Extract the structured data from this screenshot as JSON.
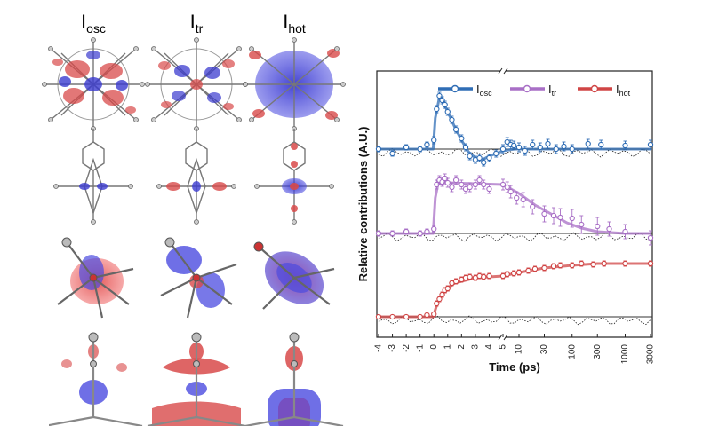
{
  "panel_titles": [
    {
      "main": "I",
      "sub": "osc"
    },
    {
      "main": "I",
      "sub": "tr"
    },
    {
      "main": "I",
      "sub": "hot"
    }
  ],
  "colors": {
    "osc": "#2f6db5",
    "tr": "#a86fc6",
    "hot": "#d04545",
    "baseline": "#333333",
    "residual": "#222222"
  },
  "chart_data": {
    "type": "scatter",
    "xlabel": "Time (ps)",
    "ylabel": "Relative contributions (A.U.)",
    "x_ticks": [
      {
        "label": "-4",
        "value": -4
      },
      {
        "label": "-3",
        "value": -3
      },
      {
        "label": "-2",
        "value": -2
      },
      {
        "label": "-1",
        "value": -1
      },
      {
        "label": "0",
        "value": 0
      },
      {
        "label": "1",
        "value": 1
      },
      {
        "label": "2",
        "value": 2
      },
      {
        "label": "3",
        "value": 3
      },
      {
        "label": "4",
        "value": 4
      },
      {
        "label": "5",
        "value": 5
      },
      {
        "label": "10",
        "value": 10
      },
      {
        "label": "30",
        "value": 30
      },
      {
        "label": "100",
        "value": 100
      },
      {
        "label": "300",
        "value": 300
      },
      {
        "label": "1000",
        "value": 1000
      },
      {
        "label": "3000",
        "value": 3000
      }
    ],
    "x_scale": "linear from -4 to 5 ps, logarithmic from 5 to 3000 ps (axis break near 5 ps)",
    "legend_position": "top",
    "series": [
      {
        "key": "osc",
        "name": "I",
        "name_sub": "osc",
        "offset": 2,
        "points": [
          [
            -4,
            0.0
          ],
          [
            -3,
            -0.05
          ],
          [
            -2,
            0.02
          ],
          [
            -1,
            0.0
          ],
          [
            -0.5,
            0.05
          ],
          [
            0,
            0.1
          ],
          [
            0.2,
            0.45
          ],
          [
            0.4,
            0.6
          ],
          [
            0.6,
            0.55
          ],
          [
            0.8,
            0.5
          ],
          [
            1,
            0.42
          ],
          [
            1.3,
            0.33
          ],
          [
            1.6,
            0.22
          ],
          [
            2,
            0.12
          ],
          [
            2.3,
            0.02
          ],
          [
            2.6,
            -0.08
          ],
          [
            3,
            -0.12
          ],
          [
            3.3,
            -0.1
          ],
          [
            3.6,
            -0.15
          ],
          [
            4,
            -0.1
          ],
          [
            4.5,
            -0.05
          ],
          [
            5,
            0.0
          ],
          [
            6,
            0.08
          ],
          [
            7,
            0.05
          ],
          [
            8,
            0.04
          ],
          [
            10,
            0.02
          ],
          [
            13,
            -0.02
          ],
          [
            18,
            0.05
          ],
          [
            25,
            0.02
          ],
          [
            35,
            0.06
          ],
          [
            50,
            0.0
          ],
          [
            70,
            0.03
          ],
          [
            100,
            0.0
          ],
          [
            200,
            0.06
          ],
          [
            350,
            0.05
          ],
          [
            1000,
            0.04
          ],
          [
            3000,
            0.05
          ]
        ],
        "errors": [
          0.03,
          0.03,
          0.03,
          0.03,
          0.03,
          0.04,
          0.04,
          0.04,
          0.04,
          0.04,
          0.04,
          0.04,
          0.04,
          0.04,
          0.04,
          0.04,
          0.04,
          0.04,
          0.04,
          0.04,
          0.04,
          0.05,
          0.05,
          0.05,
          0.05,
          0.05,
          0.05,
          0.05,
          0.05,
          0.05,
          0.05,
          0.05,
          0.05,
          0.05,
          0.05,
          0.05,
          0.05
        ],
        "fit": [
          [
            -4,
            0
          ],
          [
            -0.05,
            0
          ],
          [
            0.1,
            0.35
          ],
          [
            0.4,
            0.58
          ],
          [
            0.7,
            0.52
          ],
          [
            1,
            0.42
          ],
          [
            1.5,
            0.25
          ],
          [
            2,
            0.1
          ],
          [
            2.5,
            -0.03
          ],
          [
            3,
            -0.1
          ],
          [
            3.5,
            -0.12
          ],
          [
            4,
            -0.08
          ],
          [
            5,
            -0.02
          ],
          [
            8,
            0.0
          ],
          [
            3000,
            0.0
          ]
        ]
      },
      {
        "key": "tr",
        "name": "I",
        "name_sub": "tr",
        "offset": 1,
        "points": [
          [
            -4,
            0.0
          ],
          [
            -3,
            0.0
          ],
          [
            -2,
            0.02
          ],
          [
            -1,
            0.0
          ],
          [
            -0.5,
            0.02
          ],
          [
            0,
            0.05
          ],
          [
            0.2,
            0.55
          ],
          [
            0.4,
            0.6
          ],
          [
            0.6,
            0.58
          ],
          [
            0.8,
            0.62
          ],
          [
            1,
            0.57
          ],
          [
            1.3,
            0.52
          ],
          [
            1.6,
            0.6
          ],
          [
            2,
            0.55
          ],
          [
            2.3,
            0.5
          ],
          [
            2.6,
            0.52
          ],
          [
            3,
            0.55
          ],
          [
            3.3,
            0.6
          ],
          [
            3.6,
            0.55
          ],
          [
            4,
            0.5
          ],
          [
            5,
            0.55
          ],
          [
            6,
            0.52
          ],
          [
            7,
            0.47
          ],
          [
            9,
            0.4
          ],
          [
            12,
            0.38
          ],
          [
            18,
            0.3
          ],
          [
            30,
            0.22
          ],
          [
            45,
            0.2
          ],
          [
            60,
            0.18
          ],
          [
            100,
            0.17
          ],
          [
            150,
            0.1
          ],
          [
            300,
            0.08
          ],
          [
            500,
            0.05
          ],
          [
            1000,
            0.02
          ],
          [
            3000,
            -0.05
          ]
        ],
        "errors": [
          0.03,
          0.03,
          0.03,
          0.03,
          0.03,
          0.04,
          0.05,
          0.05,
          0.05,
          0.05,
          0.05,
          0.05,
          0.05,
          0.05,
          0.05,
          0.05,
          0.05,
          0.05,
          0.05,
          0.05,
          0.06,
          0.06,
          0.07,
          0.07,
          0.08,
          0.08,
          0.09,
          0.09,
          0.1,
          0.1,
          0.1,
          0.1,
          0.08,
          0.08,
          0.08
        ],
        "fit": [
          [
            -4,
            0
          ],
          [
            -0.05,
            0
          ],
          [
            0.1,
            0.4
          ],
          [
            0.3,
            0.56
          ],
          [
            1,
            0.57
          ],
          [
            3,
            0.56
          ],
          [
            5,
            0.55
          ],
          [
            10,
            0.45
          ],
          [
            20,
            0.32
          ],
          [
            40,
            0.22
          ],
          [
            80,
            0.12
          ],
          [
            150,
            0.06
          ],
          [
            300,
            0.02
          ],
          [
            1000,
            0.0
          ],
          [
            3000,
            0.0
          ]
        ]
      },
      {
        "key": "hot",
        "name": "I",
        "name_sub": "hot",
        "offset": 0,
        "points": [
          [
            -4,
            0.0
          ],
          [
            -3,
            0.0
          ],
          [
            -2,
            0.0
          ],
          [
            -1,
            0.0
          ],
          [
            -0.5,
            0.02
          ],
          [
            0,
            0.03
          ],
          [
            0.2,
            0.15
          ],
          [
            0.4,
            0.2
          ],
          [
            0.6,
            0.25
          ],
          [
            0.8,
            0.3
          ],
          [
            1,
            0.32
          ],
          [
            1.3,
            0.38
          ],
          [
            1.6,
            0.4
          ],
          [
            2,
            0.42
          ],
          [
            2.3,
            0.44
          ],
          [
            2.6,
            0.45
          ],
          [
            3,
            0.44
          ],
          [
            3.3,
            0.46
          ],
          [
            3.6,
            0.45
          ],
          [
            4,
            0.46
          ],
          [
            5,
            0.46
          ],
          [
            6,
            0.48
          ],
          [
            8,
            0.49
          ],
          [
            10,
            0.5
          ],
          [
            15,
            0.52
          ],
          [
            20,
            0.54
          ],
          [
            30,
            0.55
          ],
          [
            45,
            0.57
          ],
          [
            60,
            0.58
          ],
          [
            100,
            0.58
          ],
          [
            150,
            0.6
          ],
          [
            250,
            0.59
          ],
          [
            400,
            0.6
          ],
          [
            1000,
            0.6
          ],
          [
            3000,
            0.6
          ]
        ],
        "errors": [
          0.02,
          0.02,
          0.02,
          0.02,
          0.02,
          0.02,
          0.03,
          0.03,
          0.03,
          0.03,
          0.03,
          0.03,
          0.03,
          0.03,
          0.03,
          0.03,
          0.03,
          0.03,
          0.03,
          0.03,
          0.03,
          0.03,
          0.03,
          0.03,
          0.03,
          0.03,
          0.03,
          0.03,
          0.03,
          0.03,
          0.03,
          0.03,
          0.03,
          0.03,
          0.03
        ],
        "fit": [
          [
            -4,
            0
          ],
          [
            -0.05,
            0
          ],
          [
            0.3,
            0.18
          ],
          [
            0.8,
            0.3
          ],
          [
            1.5,
            0.38
          ],
          [
            3,
            0.44
          ],
          [
            5,
            0.46
          ],
          [
            10,
            0.5
          ],
          [
            30,
            0.55
          ],
          [
            100,
            0.58
          ],
          [
            300,
            0.6
          ],
          [
            3000,
            0.6
          ]
        ]
      }
    ]
  }
}
